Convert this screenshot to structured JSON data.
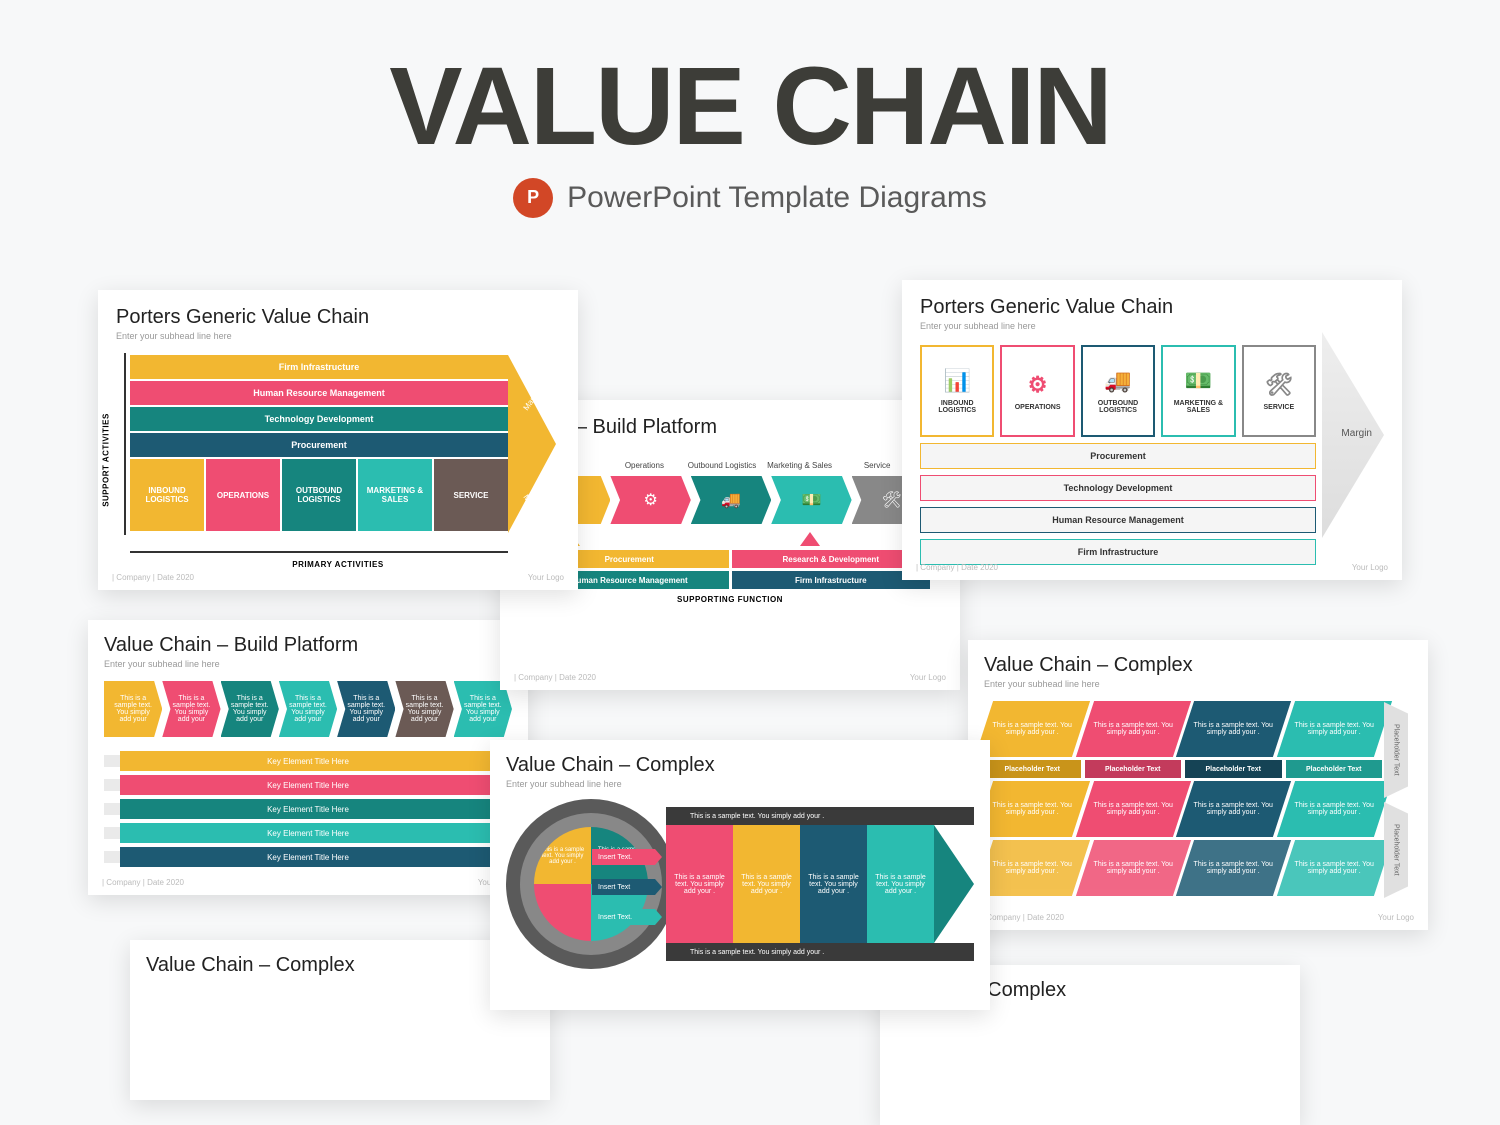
{
  "colors": {
    "dark": "#3d3d38",
    "yellow": "#f2b731",
    "pink": "#ef4d72",
    "teal": "#16857e",
    "navy": "#1d5a73",
    "cyan": "#2bbdb0",
    "brown": "#6b5a55",
    "ppt": "#d24726",
    "grey": "#888888"
  },
  "hero": {
    "title": "VALUE CHAIN",
    "subtitle": "PowerPoint Template Diagrams"
  },
  "footer": {
    "left": "| Company  | Date 2020",
    "right": "Your Logo"
  },
  "card1": {
    "title": "Porters Generic Value Chain",
    "sub": "Enter your subhead line here",
    "support": [
      "Firm Infrastructure",
      "Human Resource Management",
      "Technology Development",
      "Procurement"
    ],
    "support_colors": [
      "yellow",
      "pink",
      "teal",
      "navy"
    ],
    "primary": [
      "INBOUND LOGISTICS",
      "OPERATIONS",
      "OUTBOUND LOGISTICS",
      "MARKETING & SALES",
      "SERVICE"
    ],
    "primary_colors": [
      "yellow",
      "pink",
      "teal",
      "cyan",
      "brown"
    ],
    "axis_y": "SUPPORT ACTIVITIES",
    "axis_x": "PRIMARY ACTIVITIES",
    "margin": "Margin"
  },
  "card2": {
    "title": "Porters Generic Value Chain",
    "sub": "Enter your subhead line here",
    "boxes": [
      {
        "label": "INBOUND LOGISTICS",
        "color": "yellow",
        "icon": "📊"
      },
      {
        "label": "OPERATIONS",
        "color": "pink",
        "icon": "⚙"
      },
      {
        "label": "OUTBOUND LOGISTICS",
        "color": "navy",
        "icon": "🚚"
      },
      {
        "label": "MARKETING & SALES",
        "color": "cyan",
        "icon": "💵"
      },
      {
        "label": "SERVICE",
        "color": "grey",
        "icon": "🛠"
      }
    ],
    "bars": [
      {
        "label": "Procurement",
        "color": "yellow"
      },
      {
        "label": "Technology Development",
        "color": "pink"
      },
      {
        "label": "Human Resource Management",
        "color": "navy"
      },
      {
        "label": "Firm Infrastructure",
        "color": "cyan"
      }
    ],
    "margin": "Margin"
  },
  "card3": {
    "title": "Chain – Build Platform",
    "sub": "head line here",
    "labels": [
      "nd cs",
      "Operations",
      "Outbound Logistics",
      "Marketing & Sales",
      "Service"
    ],
    "chev_colors": [
      "yellow",
      "pink",
      "teal",
      "cyan",
      "grey"
    ],
    "chev_icons": [
      "📦",
      "⚙",
      "🚚",
      "💵",
      "🛠"
    ],
    "support_rows": [
      {
        "type": "half",
        "items": [
          {
            "label": "Procurement",
            "color": "yellow"
          },
          {
            "label": "Research & Development",
            "color": "pink"
          }
        ]
      },
      {
        "type": "half",
        "items": [
          {
            "label": "Human Resource Management",
            "color": "teal"
          },
          {
            "label": "Firm Infrastructure",
            "color": "navy"
          }
        ]
      }
    ],
    "sf": "SUPPORTING FUNCTION"
  },
  "card4": {
    "title": "Value Chain – Build Platform",
    "sub": "Enter your subhead line here",
    "chevs": [
      {
        "color": "yellow",
        "text": "This is a sample text. You simply add your"
      },
      {
        "color": "pink",
        "text": "This is a sample text. You simply add your"
      },
      {
        "color": "teal",
        "text": "This is a sample text. You simply add your"
      },
      {
        "color": "cyan",
        "text": "This is a sample text. You simply add your"
      },
      {
        "color": "navy",
        "text": "This is a sample text. You simply add your"
      },
      {
        "color": "brown",
        "text": "This is a sample text. You simply add your"
      },
      {
        "color": "cyan",
        "text": "This is a sample text. You simply add your"
      }
    ],
    "bars": [
      {
        "color": "yellow",
        "label": "Key Element Title Here"
      },
      {
        "color": "pink",
        "label": "Key Element Title Here"
      },
      {
        "color": "teal",
        "label": "Key Element Title Here"
      },
      {
        "color": "cyan",
        "label": "Key Element Title Here"
      },
      {
        "color": "navy",
        "label": "Key Element Title Here"
      }
    ]
  },
  "card5": {
    "title": "Value Chain – Complex",
    "sub": "Enter your subhead line here",
    "ring_text": "This is a sample text",
    "quads": [
      {
        "color": "yellow",
        "text": "This is a sample text. You simply add your ."
      },
      {
        "color": "teal",
        "text": "This is a sample text. You simply add your ."
      },
      {
        "color": "pink",
        "text": ""
      },
      {
        "color": "cyan",
        "text": ""
      }
    ],
    "pills": [
      {
        "color": "pink",
        "label": "Insert Text."
      },
      {
        "color": "navy",
        "label": "Insert Text"
      },
      {
        "color": "cyan",
        "label": "Insert Text."
      }
    ],
    "topbar": "This is a sample text. You simply add your .",
    "botbar": "This is a sample text. You simply add your .",
    "flow": [
      {
        "color": "pink",
        "text": "This is a sample text. You simply add your ."
      },
      {
        "color": "yellow",
        "text": "This is a sample text. You simply add your ."
      },
      {
        "color": "navy",
        "text": "This is a sample text. You simply add your ."
      },
      {
        "color": "cyan",
        "text": "This is a sample text. You simply add your ."
      }
    ],
    "arrow_color": "teal"
  },
  "card6": {
    "title": "Value Chain – Complex",
    "sub": "Enter your subhead line here",
    "cols": [
      {
        "color": "yellow",
        "dark": "#c9941a"
      },
      {
        "color": "pink",
        "dark": "#c33b5c"
      },
      {
        "color": "navy",
        "dark": "#154355"
      },
      {
        "color": "cyan",
        "dark": "#1f9a8f"
      }
    ],
    "cell_text": "This is a sample text. You simply add your .",
    "ph": "Placeholder Text",
    "side": "Placeholder Text"
  },
  "card7": {
    "title": "Value Chain – Complex",
    "sub": ""
  },
  "card8": {
    "title": "e Chain – Complex",
    "sub": ""
  }
}
